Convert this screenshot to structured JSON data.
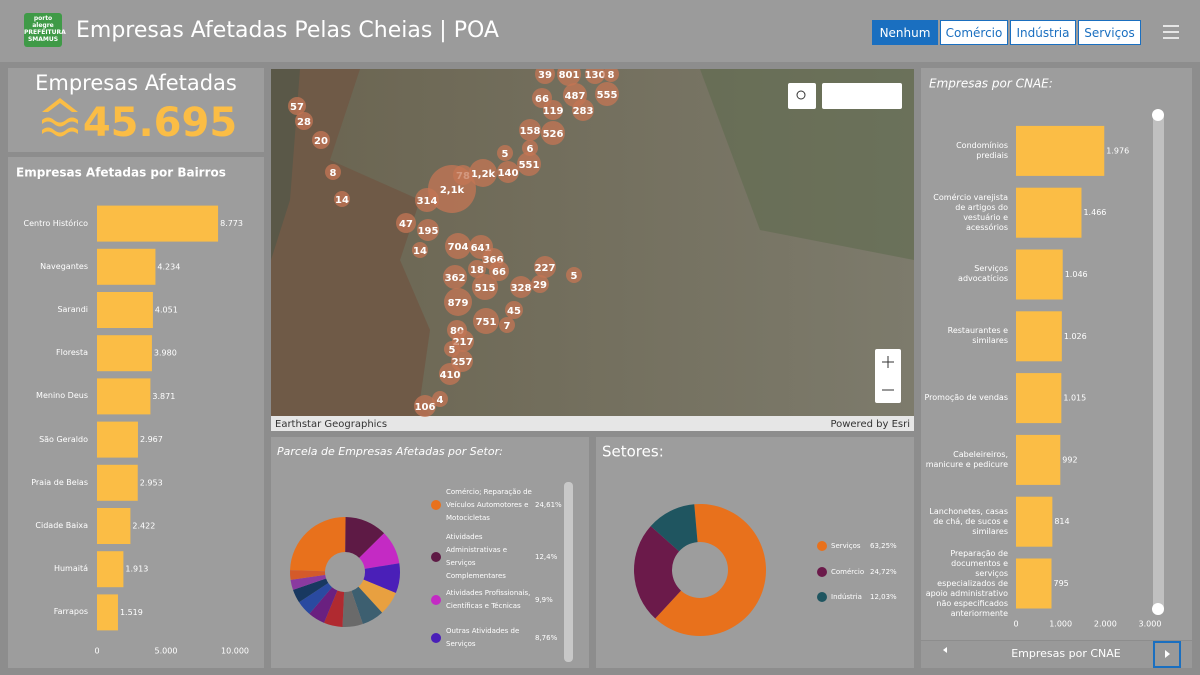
{
  "header": {
    "logo": [
      "porto",
      "alegre",
      "PREFEITURA",
      "SMAMUS"
    ],
    "title": "Empresas Afetadas Pelas Cheias | POA",
    "filters": [
      "Nenhum",
      "Comércio",
      "Indústria",
      "Serviços"
    ]
  },
  "kpi": {
    "label": "Empresas Afetadas",
    "value": "45.695"
  },
  "map": {
    "clusters": [
      "39",
      "801",
      "130",
      "8",
      "66",
      "487",
      "555",
      "119",
      "283",
      "57",
      "28",
      "20",
      "158",
      "526",
      "5",
      "6",
      "551",
      "8",
      "78",
      "1,2k",
      "140",
      "2,1k",
      "314",
      "14",
      "47",
      "195",
      "14",
      "704",
      "641",
      "366",
      "18",
      "66",
      "227",
      "5",
      "362",
      "515",
      "328",
      "29",
      "879",
      "45",
      "751",
      "7",
      "80",
      "217",
      "5",
      "257",
      "410",
      "4",
      "106"
    ],
    "attribution": "Earthstar Geographics",
    "credit": "Powered by Esri"
  },
  "chart_data": [
    {
      "type": "bar",
      "orientation": "horizontal",
      "title": "Empresas Afetadas por Bairros",
      "categories": [
        "Centro Histórico",
        "Navegantes",
        "Sarandi",
        "Floresta",
        "Menino Deus",
        "São Geraldo",
        "Praia de Belas",
        "Cidade Baixa",
        "Humaitá",
        "Farrapos"
      ],
      "values": [
        8773,
        4234,
        4051,
        3980,
        3871,
        2967,
        2953,
        2422,
        1913,
        1519
      ],
      "value_labels": [
        "8.773",
        "4.234",
        "4.051",
        "3.980",
        "3.871",
        "2.967",
        "2.953",
        "2.422",
        "1.913",
        "1.519"
      ],
      "color": "#fbbd45",
      "xlim": [
        0,
        10000
      ],
      "xticks": [
        0,
        {
          "value": 5000,
          "label": "5.000"
        },
        {
          "value": 10000,
          "label": "10.000"
        }
      ]
    },
    {
      "type": "donut",
      "title": "Parcela de Empresas Afetadas por Setor:",
      "categories": [
        "Comércio; Reparação de Veículos Automotores e Motocicletas",
        "Atividades Administrativas e Serviços Complementares",
        "Atividades Profissionais, Científicas e Técnicas",
        "Outras Atividades de Serviços",
        null,
        null,
        null,
        null,
        null,
        null,
        null,
        null,
        null
      ],
      "values": [
        24.61,
        12.4,
        9.9,
        8.76,
        7,
        6.5,
        6,
        5.5,
        5,
        4.5,
        4,
        3,
        2.83
      ],
      "value_labels": [
        "24,61%",
        "12,4%",
        "9,9%",
        "8,76%",
        null,
        null,
        null,
        null,
        null,
        null,
        null,
        null,
        null
      ],
      "colors": [
        "#e8711c",
        "#5e1a45",
        "#c42ac4",
        "#4a1fb8",
        "#e8a040",
        "#3d5f70",
        "#6a6a6a",
        "#b02a30",
        "#6a2080",
        "#2a4aa0",
        "#183860",
        "#8a3aa0",
        "#d45a2a"
      ]
    },
    {
      "type": "donut",
      "title": "Setores:",
      "categories": [
        "Serviços",
        "Comércio",
        "Indústria"
      ],
      "values": [
        63.25,
        24.72,
        12.03
      ],
      "value_labels": [
        "63,25%",
        "24,72%",
        "12,03%"
      ],
      "colors": [
        "#e8711c",
        "#6b1a4a",
        "#1f5560"
      ]
    },
    {
      "type": "bar",
      "orientation": "horizontal",
      "title": "Empresas por CNAE:",
      "categories": [
        "Condomínios prediais",
        "Comércio varejista de artigos do vestuário e acessórios",
        "Serviços advocatícios",
        "Restaurantes e similares",
        "Promoção de vendas",
        "Cabeleireiros, manicure e pedicure",
        "Lanchonetes, casas de chá, de sucos e similares",
        "Preparação de documentos e serviços especializados de apoio administrativo não especificados anteriormente"
      ],
      "values": [
        1976,
        1466,
        1046,
        1026,
        1015,
        992,
        814,
        795
      ],
      "value_labels": [
        "1.976",
        "1.466",
        "1.046",
        "1.026",
        "1.015",
        "992",
        "814",
        "795"
      ],
      "color": "#fbbd45",
      "xlim": [
        0,
        3000
      ],
      "xticks": [
        0,
        {
          "value": 1000,
          "label": "1.000"
        },
        {
          "value": 2000,
          "label": "2.000"
        },
        {
          "value": 3000,
          "label": "3.000"
        }
      ]
    }
  ],
  "panel_footer": {
    "label": "Empresas por CNAE"
  }
}
